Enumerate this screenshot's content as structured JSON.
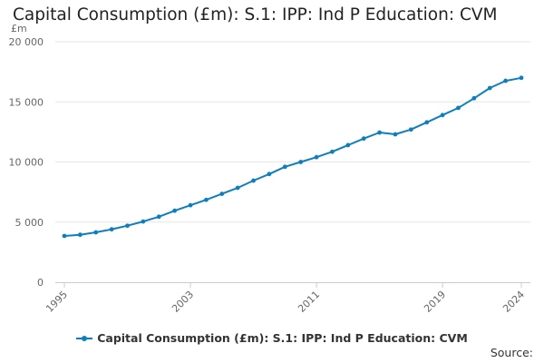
{
  "chart_data": {
    "type": "line",
    "title": "Capital Consumption (£m): S.1: IPP: Ind P Education: CVM",
    "unit_label": "£m",
    "ylim": [
      0,
      20000
    ],
    "yticks": [
      0,
      5000,
      10000,
      15000,
      20000
    ],
    "ytick_labels": [
      "0",
      "5 000",
      "10 000",
      "15 000",
      "20 000"
    ],
    "xlim": [
      1995,
      2024
    ],
    "xticks": [
      1995,
      2003,
      2011,
      2019,
      2024
    ],
    "xtick_labels": [
      "1995",
      "2003",
      "2011",
      "2019",
      "2024"
    ],
    "grid": true,
    "legend_position": "bottom",
    "color": "#0f7ebd",
    "series": [
      {
        "name": "Capital Consumption (£m): S.1: IPP: Ind P Education: CVM",
        "x": [
          1995,
          1996,
          1997,
          1998,
          1999,
          2000,
          2001,
          2002,
          2003,
          2004,
          2005,
          2006,
          2007,
          2008,
          2009,
          2010,
          2011,
          2012,
          2013,
          2014,
          2015,
          2016,
          2017,
          2018,
          2019,
          2020,
          2021,
          2022,
          2023,
          2024
        ],
        "values": [
          3850,
          3950,
          4150,
          4400,
          4700,
          5050,
          5450,
          5950,
          6400,
          6850,
          7350,
          7850,
          8450,
          9000,
          9600,
          10000,
          10400,
          10850,
          11400,
          11950,
          12450,
          12300,
          12700,
          13300,
          13900,
          14500,
          15300,
          16150,
          16750,
          17000
        ]
      }
    ]
  },
  "source_label": "Source:"
}
